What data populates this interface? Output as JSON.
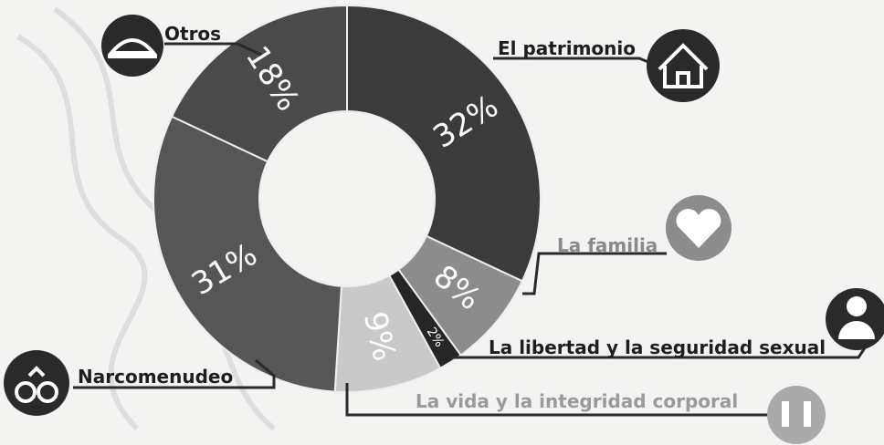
{
  "chart_data": {
    "type": "donut",
    "categories": [
      "El patrimonio",
      "La familia",
      "La libertad y la seguridad sexual",
      "La vida y la integridad corporal",
      "Narcomenudeo",
      "Otros"
    ],
    "values": [
      32,
      8,
      2,
      9,
      31,
      18
    ],
    "value_labels": [
      "32%",
      "8%",
      "2%",
      "9%",
      "31%",
      "18%"
    ],
    "colors": [
      "#3b3b3b",
      "#8c8c8c",
      "#262626",
      "#c9c9c9",
      "#565656",
      "#4a4a4a"
    ]
  }
}
